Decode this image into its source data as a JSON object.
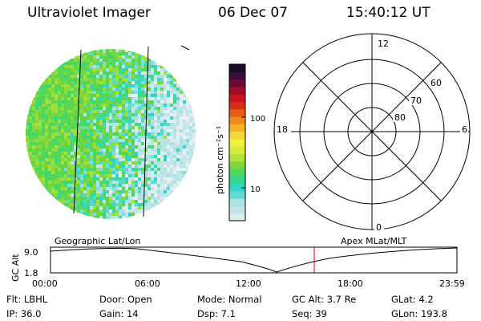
{
  "header": {
    "instrument": "Ultraviolet Imager",
    "date": "06 Dec 07",
    "time": "15:40:12 UT"
  },
  "colorbar": {
    "unit_label": "photon cm⁻²s⁻¹",
    "ticks": [
      "100",
      "10"
    ],
    "colors": [
      "#dcebee",
      "#c3e5ea",
      "#a8e4e3",
      "#62dcd6",
      "#2fd7c6",
      "#32d68e",
      "#4cd95e",
      "#7dd83a",
      "#b3e13a",
      "#d6eb3c",
      "#f1f23e",
      "#f5d63b",
      "#f7b325",
      "#f08918",
      "#e85b15",
      "#dd2a17",
      "#c8121c",
      "#9e0a2a",
      "#6c0b3a",
      "#3e0b3c",
      "#170b2a"
    ]
  },
  "polar": {
    "hour_labels": [
      "12",
      "18",
      "6",
      "0"
    ],
    "lat_labels": [
      "60",
      "70",
      "80"
    ]
  },
  "timeline": {
    "left_caption": "Geographic Lat/Lon",
    "right_caption": "Apex MLat/MLT",
    "y_axis_title": "GC Alt",
    "y_ticks": [
      "9.0",
      "1.8"
    ],
    "x_ticks": [
      "00:00",
      "06:00",
      "12:00",
      "18:00",
      "23:59"
    ],
    "marker_color": "#dd0000"
  },
  "info": {
    "flt": "Flt: LBHL",
    "door": "Door: Open",
    "mode": "Mode: Normal",
    "gc_alt": "GC Alt: 3.7 Re",
    "glat": "GLat:   4.2",
    "ip": "IP: 36.0",
    "gain": "Gain: 14",
    "dsp": "Dsp:    7.1",
    "seq": "Seq: 39",
    "glon": "GLon: 193.8"
  }
}
